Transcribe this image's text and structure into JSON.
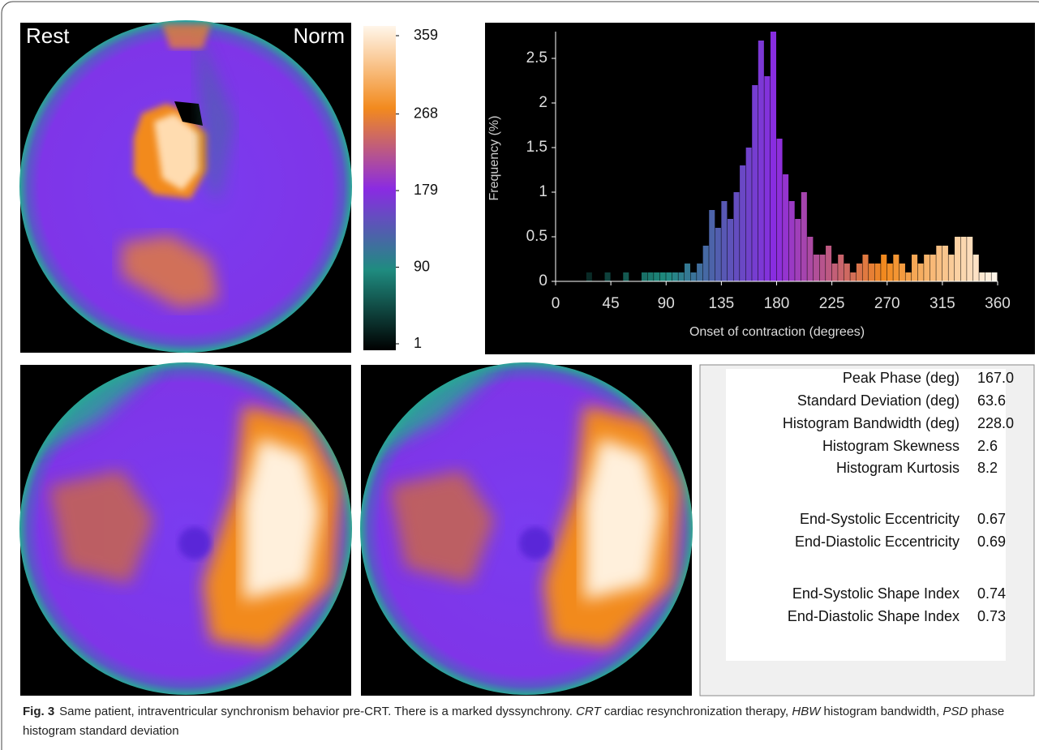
{
  "maps": {
    "rest_label": "Rest",
    "norm_label": "Norm"
  },
  "colorbar": {
    "ticks": [
      1,
      90,
      179,
      268,
      359
    ],
    "colors": [
      "#000000",
      "#1f8c80",
      "#8a2be2",
      "#f28a1e",
      "#fff6ea"
    ]
  },
  "chart_data": {
    "type": "histogram",
    "x_label": "Onset of contraction (degrees)",
    "y_label": "Frequency (%)",
    "bins": [
      0,
      5,
      10,
      15,
      20,
      25,
      30,
      35,
      40,
      45,
      50,
      55,
      60,
      65,
      70,
      75,
      80,
      85,
      90,
      95,
      100,
      105,
      110,
      115,
      120,
      125,
      130,
      135,
      140,
      145,
      150,
      155,
      160,
      165,
      170,
      175,
      180,
      185,
      190,
      195,
      200,
      205,
      210,
      215,
      220,
      225,
      230,
      235,
      240,
      245,
      250,
      255,
      260,
      265,
      270,
      275,
      280,
      285,
      290,
      295,
      300,
      305,
      310,
      315,
      320,
      325,
      330,
      335,
      340,
      345,
      350,
      355,
      360
    ],
    "values": [
      0,
      0,
      0,
      0,
      0,
      0.1,
      0,
      0,
      0.1,
      0,
      0,
      0.1,
      0,
      0,
      0.1,
      0.1,
      0.1,
      0.1,
      0.1,
      0.1,
      0.1,
      0.2,
      0.1,
      0.2,
      0.4,
      0.8,
      0.6,
      0.9,
      0.7,
      1.0,
      1.3,
      1.5,
      2.2,
      2.7,
      2.3,
      2.8,
      1.6,
      1.2,
      0.9,
      0.7,
      1.0,
      0.5,
      0.3,
      0.3,
      0.4,
      0.2,
      0.3,
      0.2,
      0.1,
      0.2,
      0.3,
      0.2,
      0.2,
      0.3,
      0.2,
      0.3,
      0.2,
      0.1,
      0.3,
      0.2,
      0.3,
      0.3,
      0.4,
      0.4,
      0.3,
      0.5,
      0.5,
      0.5,
      0.3,
      0.1,
      0.1,
      0.1
    ],
    "xlim": [
      0,
      360
    ],
    "xticks": [
      0,
      45,
      90,
      135,
      180,
      225,
      270,
      315,
      360
    ],
    "ylim": [
      0,
      2.8
    ],
    "yticks": [
      0,
      0.5,
      1,
      1.5,
      2,
      2.5
    ]
  },
  "stats": {
    "rows": [
      [
        "Peak Phase (deg)",
        "167.0"
      ],
      [
        "Standard Deviation (deg)",
        "63.6"
      ],
      [
        "Histogram Bandwidth (deg)",
        "228.0"
      ],
      [
        "Histogram Skewness",
        "2.6"
      ],
      [
        "Histogram Kurtosis",
        "8.2"
      ],
      [
        "End-Systolic Eccentricity",
        "0.67"
      ],
      [
        "End-Diastolic Eccentricity",
        "0.69"
      ],
      [
        "End-Systolic Shape Index",
        "0.74"
      ],
      [
        "End-Diastolic Shape Index",
        "0.73"
      ]
    ]
  },
  "caption": {
    "label": "Fig. 3",
    "segments": [
      "Same patient, intraventricular synchronism behavior pre-CRT. There is a marked dyssynchrony.",
      "CRT",
      "cardiac resynchronization therapy,",
      "HBW",
      "histogram bandwidth,",
      "PSD",
      "phase histogram standard deviation"
    ]
  }
}
